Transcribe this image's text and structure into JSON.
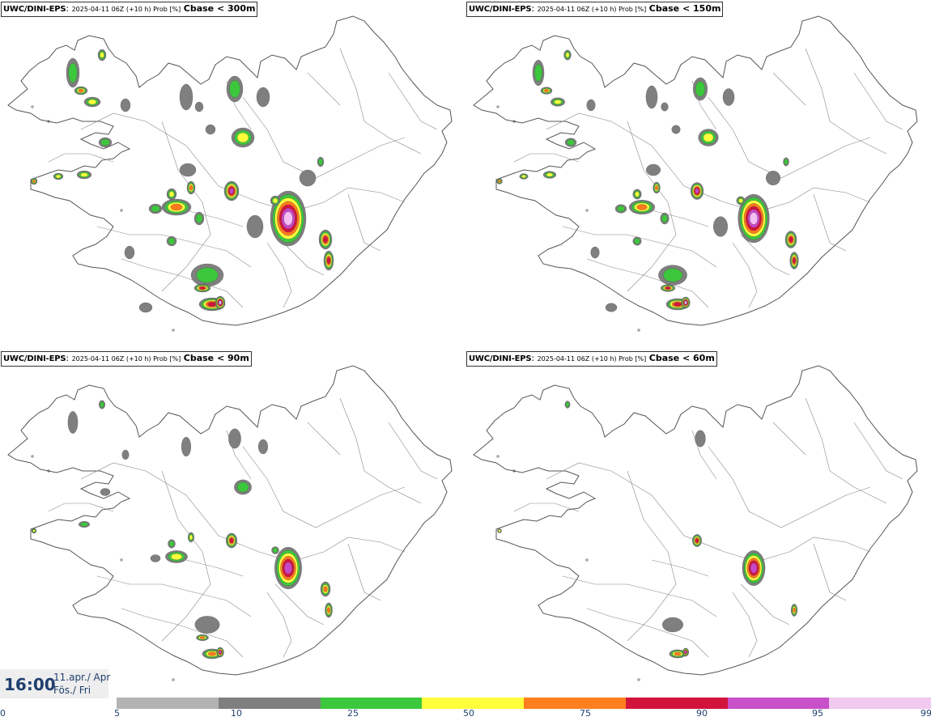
{
  "panels": [
    {
      "model": "UWC/DINI-EPS",
      "meta": "2025-04-11 06Z (+10 h) Prob [%]",
      "field": "Cbase < 300m",
      "intensity": 4
    },
    {
      "model": "UWC/DINI-EPS",
      "meta": "2025-04-11 06Z (+10 h) Prob [%]",
      "field": "Cbase < 150m",
      "intensity": 3
    },
    {
      "model": "UWC/DINI-EPS",
      "meta": "2025-04-11 06Z (+10 h) Prob [%]",
      "field": "Cbase < 90m",
      "intensity": 2
    },
    {
      "model": "UWC/DINI-EPS",
      "meta": "2025-04-11 06Z (+10 h) Prob [%]",
      "field": "Cbase < 60m",
      "intensity": 1
    }
  ],
  "valid_time": {
    "clock": "16:00",
    "date_line1": "11.apr./ Apr",
    "date_line2": "Fös./ Fri"
  },
  "legend": {
    "ticks": [
      "0",
      "5",
      "10",
      "25",
      "50",
      "75",
      "90",
      "95",
      "99"
    ],
    "colors": [
      "#b3b3b3",
      "#7f7f7f",
      "#3cc83c",
      "#ffff3c",
      "#ff7f1e",
      "#d2143c",
      "#c850c8",
      "#f0c8f0"
    ]
  },
  "map_colors": {
    "land_outline": "#555555",
    "light": "#f5bef5",
    "magenta": "#c846c8",
    "red": "#d2143c",
    "orange": "#ff781e",
    "yellow": "#ffff3c",
    "green": "#3cc83c",
    "dark_gray": "#7f7f7f",
    "light_gray": "#b3b3b3"
  }
}
